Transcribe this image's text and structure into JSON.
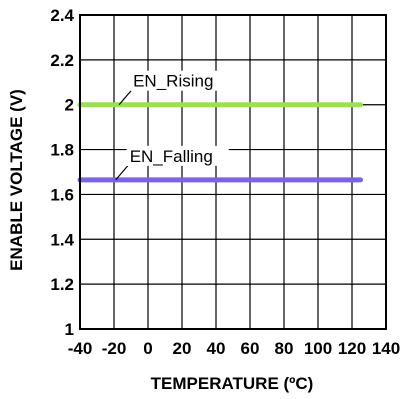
{
  "chart_data": {
    "type": "line",
    "title": "",
    "xlabel": "TEMPERATURE (ºC)",
    "ylabel": "ENABLE VOLTAGE (V)",
    "xlim": [
      -40,
      140
    ],
    "ylim": [
      1,
      2.4
    ],
    "xticks": [
      -40,
      -20,
      0,
      20,
      40,
      60,
      80,
      100,
      120,
      140
    ],
    "yticks": [
      1,
      1.2,
      1.4,
      1.6,
      1.8,
      2,
      2.2,
      2.4
    ],
    "xtick_labels": [
      "-40",
      "-20",
      "0",
      "20",
      "40",
      "60",
      "80",
      "100",
      "120",
      "140"
    ],
    "ytick_labels": [
      "1",
      "1.2",
      "1.4",
      "1.6",
      "1.8",
      "2",
      "2.2",
      "2.4"
    ],
    "grid": true,
    "series": [
      {
        "name": "EN_Rising",
        "color": "#99e24f",
        "x": [
          -40,
          -20,
          0,
          20,
          40,
          60,
          80,
          100,
          125
        ],
        "y": [
          2.0,
          2.0,
          2.0,
          2.0,
          2.0,
          2.0,
          2.0,
          2.0,
          2.0
        ]
      },
      {
        "name": "EN_Falling",
        "color": "#7b63e6",
        "x": [
          -40,
          -20,
          0,
          20,
          40,
          60,
          80,
          100,
          125
        ],
        "y": [
          1.665,
          1.665,
          1.665,
          1.665,
          1.665,
          1.665,
          1.665,
          1.665,
          1.665
        ]
      }
    ],
    "annotations": [
      {
        "text": "EN_Rising",
        "series": 0,
        "at_x": -17
      },
      {
        "text": "EN_Falling",
        "series": 1,
        "at_x": -19
      }
    ]
  }
}
